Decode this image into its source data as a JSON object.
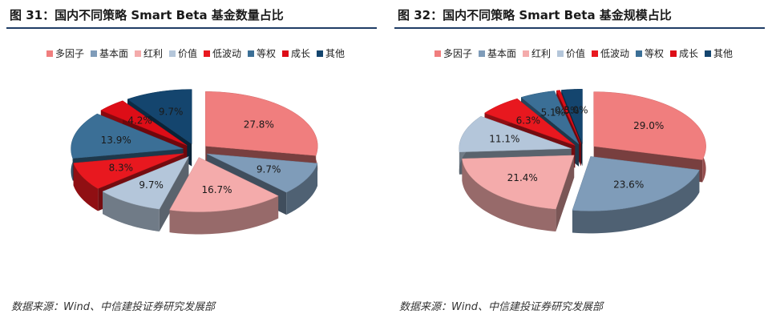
{
  "colors": [
    "#f07e7e",
    "#7f9cb9",
    "#f4abab",
    "#b4c6da",
    "#e8181f",
    "#3b6f96",
    "#dd0d17",
    "#14456e"
  ],
  "legend": [
    "多因子",
    "基本面",
    "红利",
    "价值",
    "低波动",
    "等权",
    "成长",
    "其他"
  ],
  "chart_data": [
    {
      "type": "pie",
      "title": "图 31：国内不同策略 Smart Beta 基金数量占比",
      "categories": [
        "多因子",
        "基本面",
        "红利",
        "价值",
        "低波动",
        "等权",
        "成长",
        "其他"
      ],
      "values": [
        27.8,
        9.7,
        16.7,
        9.7,
        8.3,
        13.9,
        4.2,
        9.7
      ],
      "labels": [
        "27.8%",
        "9.7%",
        "16.7%",
        "9.7%",
        "8.3%",
        "13.9%",
        "4.2%",
        "9.7%"
      ],
      "legend_position": "top"
    },
    {
      "type": "pie",
      "title": "图 32：国内不同策略 Smart Beta 基金规模占比",
      "categories": [
        "多因子",
        "基本面",
        "红利",
        "价值",
        "低波动",
        "等权",
        "成长",
        "其他"
      ],
      "values": [
        29.0,
        23.6,
        21.4,
        11.1,
        6.3,
        5.1,
        0.5,
        3.0
      ],
      "labels": [
        "29.0%",
        "23.6%",
        "21.4%",
        "11.1%",
        "6.3%",
        "5.1%",
        "0.5%",
        "3.0%"
      ],
      "legend_position": "top"
    }
  ],
  "source": "数据来源：Wind、中信建投证券研究发展部"
}
